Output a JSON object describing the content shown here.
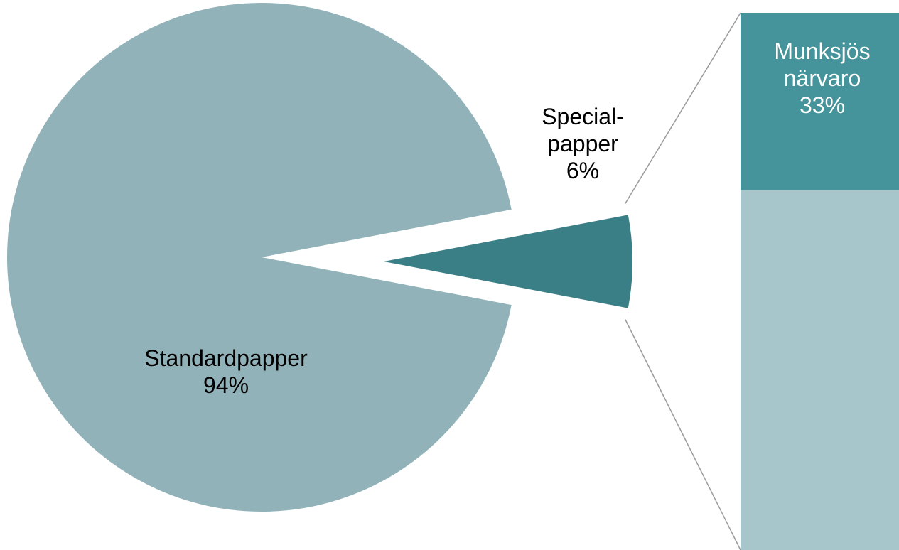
{
  "chart_data": [
    {
      "type": "pie",
      "title": "",
      "slices": [
        {
          "label_lines": [
            "Standardpapper",
            "94%"
          ],
          "value": 94,
          "color": "#91b2b8"
        },
        {
          "label_lines": [
            "Special-",
            "papper",
            "6%"
          ],
          "value": 6,
          "color": "#3a7e86"
        }
      ]
    },
    {
      "type": "bar",
      "stacked": true,
      "title": "",
      "segments": [
        {
          "label_lines": [
            "Munksjös",
            "närvaro",
            "33%"
          ],
          "value": 33,
          "color": "#45949c"
        },
        {
          "label_lines": [],
          "value": 67,
          "color": "#a7c6cb"
        }
      ]
    }
  ],
  "colors": {
    "background": "#ffffff",
    "canvas": "#ffffff",
    "connector": "#9a9a9a",
    "label_dark": "#000000",
    "label_light": "#ffffff"
  }
}
